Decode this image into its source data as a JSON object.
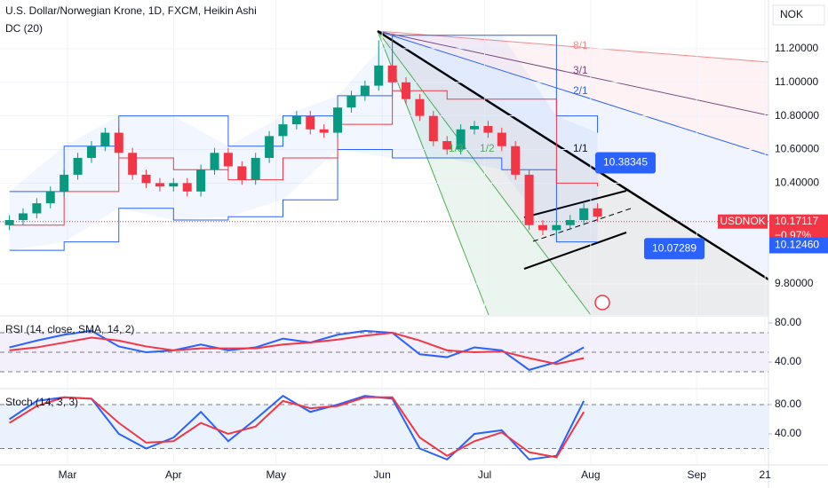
{
  "header": {
    "title": "U.S. Dollar/Norwegian Krone, 1D, FXCM, Heikin Ashi",
    "indicator": "DC (20)",
    "currency": "NOK"
  },
  "chart_data": [
    {
      "type": "candlestick",
      "x": [
        -17,
        -13,
        -9,
        -5,
        -1,
        3,
        7,
        11,
        15,
        19,
        23,
        27,
        31,
        35,
        39,
        43,
        47,
        51,
        55,
        59,
        63,
        67,
        71,
        75,
        79,
        83,
        87,
        91,
        95,
        99,
        103,
        107,
        111,
        115,
        119,
        123,
        127,
        131,
        135,
        139,
        143,
        147,
        151,
        155
      ],
      "open": [
        10.15,
        10.18,
        10.22,
        10.28,
        10.35,
        10.45,
        10.55,
        10.62,
        10.7,
        10.58,
        10.45,
        10.4,
        10.38,
        10.4,
        10.35,
        10.48,
        10.58,
        10.5,
        10.42,
        10.55,
        10.68,
        10.75,
        10.8,
        10.72,
        10.7,
        10.85,
        10.92,
        10.98,
        11.1,
        11.0,
        10.9,
        10.8,
        10.65,
        10.6,
        10.72,
        10.74,
        10.7,
        10.62,
        10.45,
        10.15,
        10.12,
        10.15,
        10.18,
        10.25
      ],
      "high": [
        10.21,
        10.25,
        10.31,
        10.38,
        10.48,
        10.58,
        10.65,
        10.73,
        10.73,
        10.61,
        10.48,
        10.43,
        10.43,
        10.43,
        10.51,
        10.61,
        10.61,
        10.53,
        10.58,
        10.71,
        10.78,
        10.83,
        10.83,
        10.75,
        10.88,
        10.95,
        11.01,
        11.25,
        11.13,
        11.03,
        10.93,
        10.83,
        10.68,
        10.75,
        10.77,
        10.77,
        10.73,
        10.65,
        10.48,
        10.18,
        10.18,
        10.21,
        10.28,
        10.28
      ],
      "low": [
        10.12,
        10.15,
        10.19,
        10.25,
        10.32,
        10.42,
        10.52,
        10.59,
        10.55,
        10.42,
        10.37,
        10.35,
        10.35,
        10.32,
        10.32,
        10.45,
        10.47,
        10.39,
        10.39,
        10.52,
        10.65,
        10.72,
        10.69,
        10.67,
        10.67,
        10.82,
        10.89,
        10.95,
        10.97,
        10.87,
        10.77,
        10.62,
        10.57,
        10.57,
        10.69,
        10.67,
        10.59,
        10.42,
        10.12,
        10.09,
        10.09,
        10.12,
        10.15,
        10.17
      ],
      "close": [
        10.18,
        10.22,
        10.28,
        10.35,
        10.45,
        10.55,
        10.62,
        10.7,
        10.58,
        10.45,
        10.4,
        10.38,
        10.4,
        10.35,
        10.48,
        10.58,
        10.5,
        10.42,
        10.55,
        10.68,
        10.75,
        10.8,
        10.72,
        10.7,
        10.85,
        10.92,
        10.98,
        11.1,
        11.0,
        10.9,
        10.8,
        10.65,
        10.6,
        10.72,
        10.74,
        10.7,
        10.62,
        10.45,
        10.15,
        10.12,
        10.15,
        10.18,
        10.25,
        10.2
      ],
      "up_color": "#089981",
      "down_color": "#f23645",
      "series": [
        {
          "color": "#2962ff",
          "x": [
            -17,
            -1,
            15,
            31,
            47,
            63,
            79,
            95,
            111,
            127,
            143,
            155
          ],
          "values": [
            10.35,
            10.62,
            10.8,
            10.8,
            10.62,
            10.8,
            10.92,
            11.28,
            11.28,
            11.28,
            10.8,
            10.7
          ]
        },
        {
          "color": "#2962ff",
          "x": [
            -17,
            -1,
            15,
            31,
            47,
            63,
            79,
            95,
            111,
            127,
            143,
            155
          ],
          "values": [
            10.0,
            10.05,
            10.25,
            10.18,
            10.2,
            10.3,
            10.6,
            10.55,
            10.55,
            10.48,
            10.05,
            10.05
          ]
        },
        {
          "color": "#f23645",
          "x": [
            -17,
            -1,
            15,
            31,
            47,
            63,
            79,
            95,
            111,
            127,
            143,
            155
          ],
          "values": [
            10.15,
            10.35,
            10.55,
            10.48,
            10.42,
            10.55,
            10.75,
            10.95,
            10.9,
            10.9,
            10.4,
            10.38
          ]
        }
      ],
      "xlim": [
        -19.75,
        205
      ],
      "xticks": [
        {
          "value": 0,
          "label": "Mar"
        },
        {
          "value": 31,
          "label": "Apr"
        },
        {
          "value": 61,
          "label": "May"
        },
        {
          "value": 92,
          "label": "Jun"
        },
        {
          "value": 122,
          "label": "Jul"
        },
        {
          "value": 153,
          "label": "Aug"
        },
        {
          "value": 184,
          "label": "Sep"
        },
        {
          "value": 204,
          "label": "21"
        }
      ],
      "ylim": [
        9.615,
        11.49
      ],
      "yticks": [
        {
          "value": 11.2,
          "label": "11.20000"
        },
        {
          "value": 11.0,
          "label": "11.00000"
        },
        {
          "value": 10.8,
          "label": "10.80000"
        },
        {
          "value": 10.6,
          "label": "10.60000"
        },
        {
          "value": 10.4,
          "label": "10.40000"
        },
        {
          "value": 9.8,
          "label": "9.80000"
        }
      ],
      "fan_labels": [
        "8/1",
        "3/1",
        "2/1",
        "1/1",
        "1/3",
        "1/2"
      ],
      "price_labels": [
        10.38345,
        10.07289
      ],
      "symbol": "USDNOK",
      "last": 10.17117,
      "change": {
        "value": -0.97,
        "label": "−0.97%"
      },
      "prev": {
        "value": 10.1246,
        "label": "10.12460"
      }
    },
    {
      "type": "line",
      "title": "RSI (14, close, SMA, 14, 2)",
      "x": [
        -17,
        -9,
        -1,
        7,
        15,
        23,
        31,
        39,
        47,
        55,
        63,
        71,
        79,
        87,
        95,
        103,
        111,
        119,
        127,
        135,
        143,
        151
      ],
      "series": [
        {
          "color": "#2962ff",
          "values": [
            55,
            62,
            68,
            72,
            56,
            50,
            52,
            58,
            52,
            55,
            64,
            60,
            68,
            72,
            70,
            48,
            45,
            55,
            52,
            32,
            40,
            55
          ]
        },
        {
          "color": "#f23645",
          "values": [
            52,
            55,
            60,
            65,
            62,
            56,
            52,
            54,
            54,
            54,
            58,
            60,
            63,
            67,
            70,
            62,
            52,
            50,
            51,
            44,
            38,
            44
          ]
        }
      ],
      "levels": [
        70,
        50,
        30
      ],
      "ylim": [
        15.5,
        85.5
      ],
      "yticks": [
        {
          "value": 80,
          "label": "80.00"
        },
        {
          "value": 40,
          "label": "40.00"
        }
      ]
    },
    {
      "type": "line",
      "title": "Stoch (14, 3, 3)",
      "x": [
        -17,
        -9,
        -1,
        7,
        15,
        23,
        31,
        39,
        47,
        55,
        63,
        71,
        79,
        87,
        95,
        103,
        111,
        119,
        127,
        135,
        143,
        151
      ],
      "series": [
        {
          "color": "#2962ff",
          "values": [
            60,
            85,
            90,
            88,
            40,
            20,
            35,
            70,
            30,
            60,
            92,
            70,
            80,
            92,
            88,
            20,
            5,
            40,
            45,
            5,
            10,
            85
          ]
        },
        {
          "color": "#f23645",
          "values": [
            55,
            78,
            90,
            88,
            55,
            28,
            30,
            55,
            40,
            50,
            85,
            75,
            78,
            90,
            90,
            35,
            10,
            30,
            42,
            15,
            8,
            70
          ]
        }
      ],
      "levels": [
        80,
        20
      ],
      "ylim": [
        0,
        99.4
      ],
      "yticks": [
        {
          "value": 80,
          "label": "80.00"
        },
        {
          "value": 40,
          "label": "40.00"
        }
      ]
    }
  ]
}
